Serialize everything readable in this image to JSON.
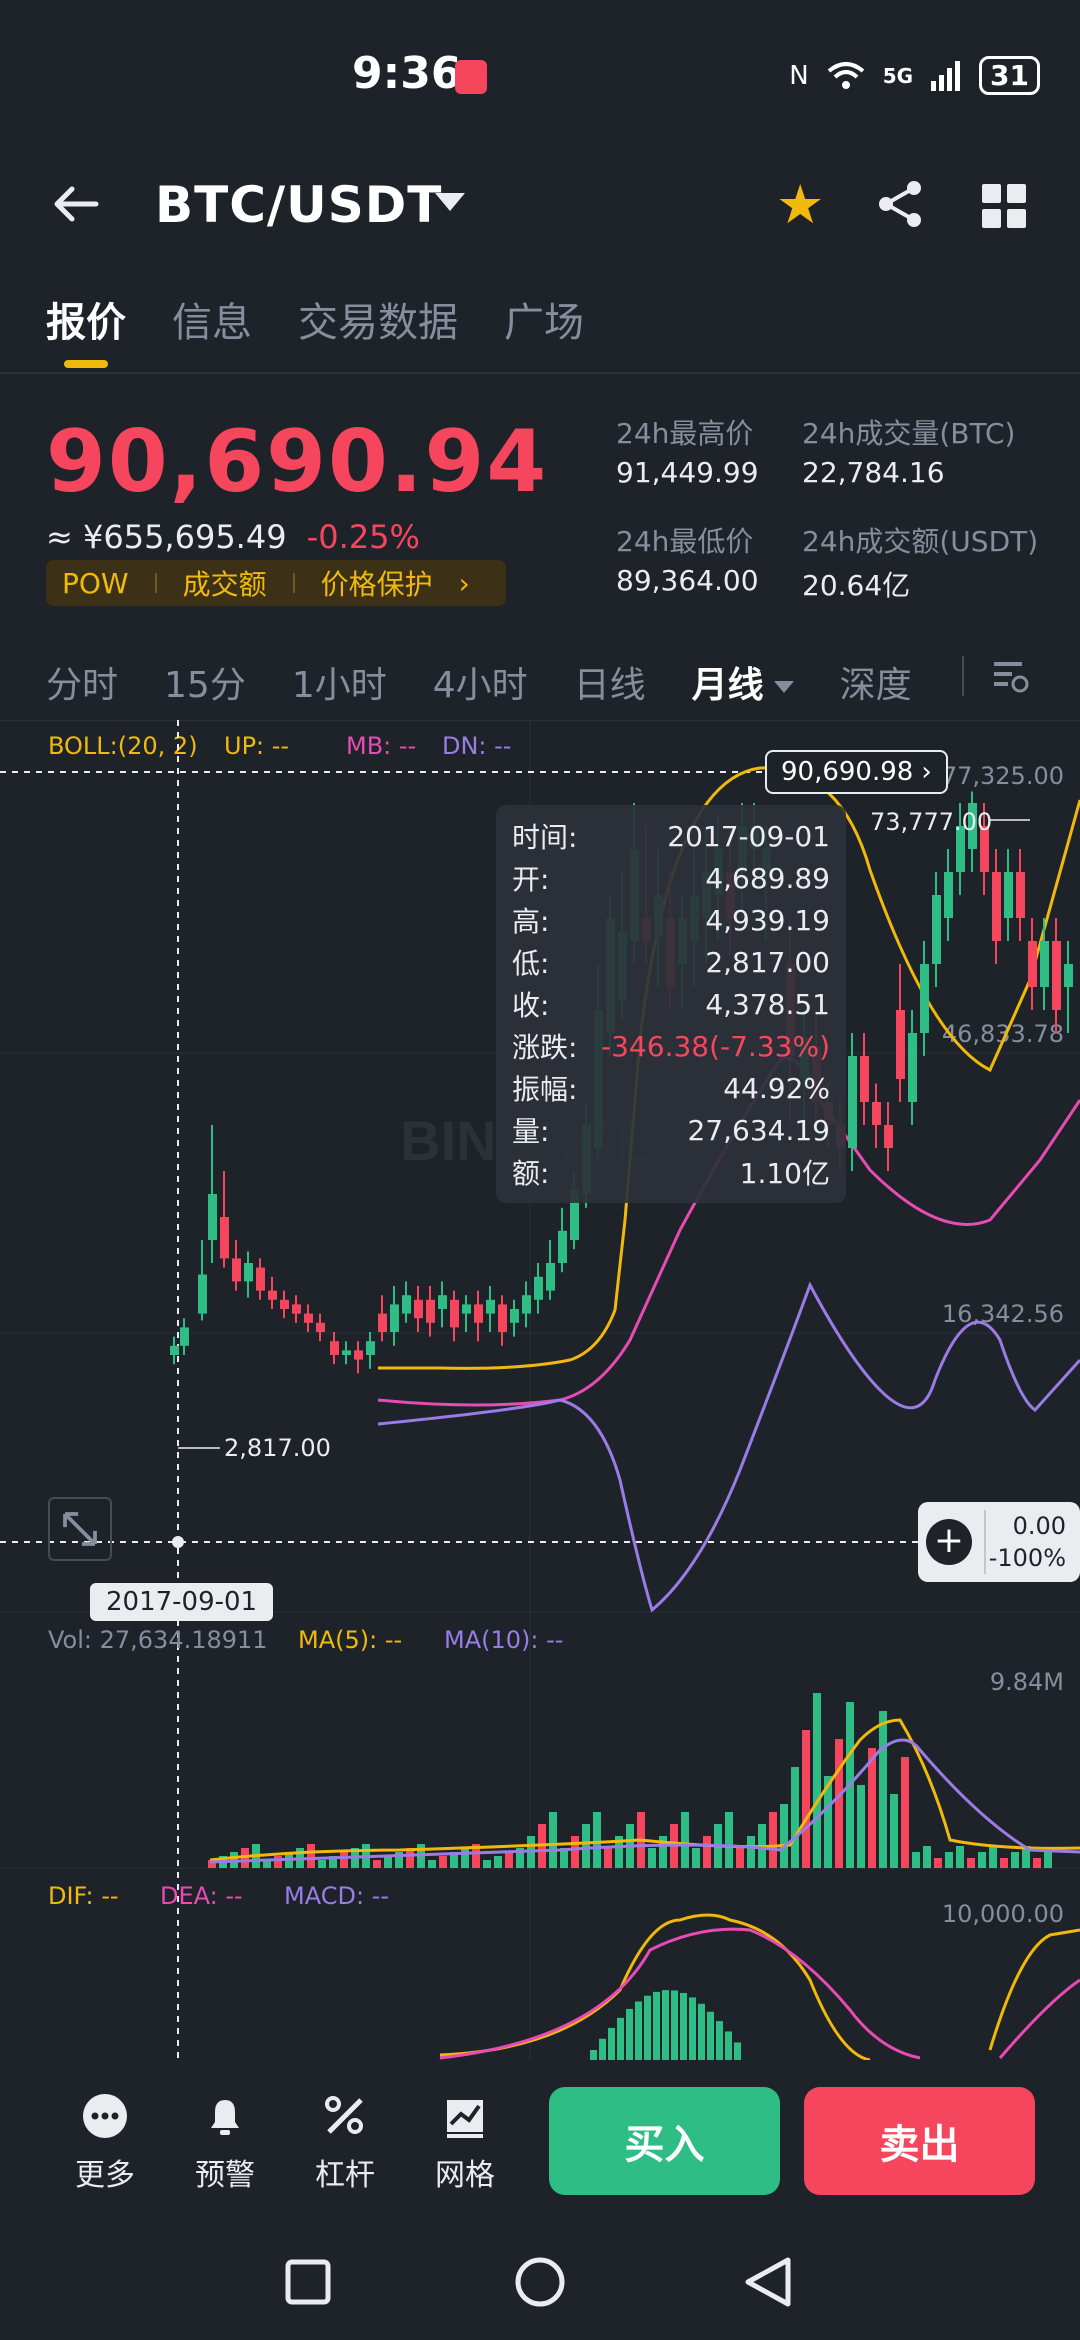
{
  "status_bar": {
    "time": "9:36",
    "battery": "31",
    "network": "5G"
  },
  "header": {
    "pair": "BTC/USDT"
  },
  "tabs": [
    {
      "label": "报价",
      "active": true
    },
    {
      "label": "信息",
      "active": false
    },
    {
      "label": "交易数据",
      "active": false
    },
    {
      "label": "广场",
      "active": false
    }
  ],
  "price": {
    "last": "90,690.94",
    "cny": "≈ ¥655,695.49",
    "change": "-0.25%",
    "tags": [
      "POW",
      "成交额",
      "价格保护"
    ],
    "stats": {
      "high_label": "24h最高价",
      "high": "91,449.99",
      "low_label": "24h最低价",
      "low": "89,364.00",
      "vol_btc_label": "24h成交量(BTC)",
      "vol_btc": "22,784.16",
      "vol_usdt_label": "24h成交额(USDT)",
      "vol_usdt": "20.64亿"
    }
  },
  "timeframes": [
    {
      "label": "分时",
      "active": false
    },
    {
      "label": "15分",
      "active": false
    },
    {
      "label": "1小时",
      "active": false
    },
    {
      "label": "4小时",
      "active": false
    },
    {
      "label": "日线",
      "active": false
    },
    {
      "label": "月线",
      "active": true
    },
    {
      "label": "深度",
      "active": false
    }
  ],
  "chart": {
    "boll_label": "BOLL:(20, 2)",
    "boll_up": "UP: --",
    "boll_mb": "MB: --",
    "boll_dn": "DN: --",
    "axis_top": "77,325.00",
    "axis_mid": "46,833.78",
    "axis_low": "16,342.56",
    "max_label": "73,777.00",
    "min_label": "2,817.00",
    "current_flag": "90,690.98",
    "crosshair_date": "2017-09-01",
    "crosshair_value": "0.00",
    "crosshair_pct": "-100%",
    "vol_label": "Vol: 27,634.18911",
    "vol_ma5": "MA(5): --",
    "vol_ma10": "MA(10): --",
    "vol_axis": "9.84M",
    "macd_dif": "DIF: --",
    "macd_dea": "DEA: --",
    "macd_macd": "MACD: --",
    "macd_axis": "10,000.00",
    "watermark": "BINANCE"
  },
  "tooltip": [
    {
      "label": "时间:",
      "value": "2017-09-01"
    },
    {
      "label": "开:",
      "value": "4,689.89"
    },
    {
      "label": "高:",
      "value": "4,939.19"
    },
    {
      "label": "低:",
      "value": "2,817.00"
    },
    {
      "label": "收:",
      "value": "4,378.51"
    },
    {
      "label": "涨跌:",
      "value": "-346.38(-7.33%)"
    },
    {
      "label": "振幅:",
      "value": "44.92%"
    },
    {
      "label": "量:",
      "value": "27,634.19"
    },
    {
      "label": "额:",
      "value": "1.10亿"
    }
  ],
  "bottom_bar": {
    "more": "更多",
    "alert": "预警",
    "leverage": "杠杆",
    "grid": "网格",
    "buy": "买入",
    "sell": "卖出"
  },
  "colors": {
    "up": "#2ebd85",
    "down": "#f6465d",
    "accent": "#f0b90b",
    "bg": "#1e2329"
  }
}
